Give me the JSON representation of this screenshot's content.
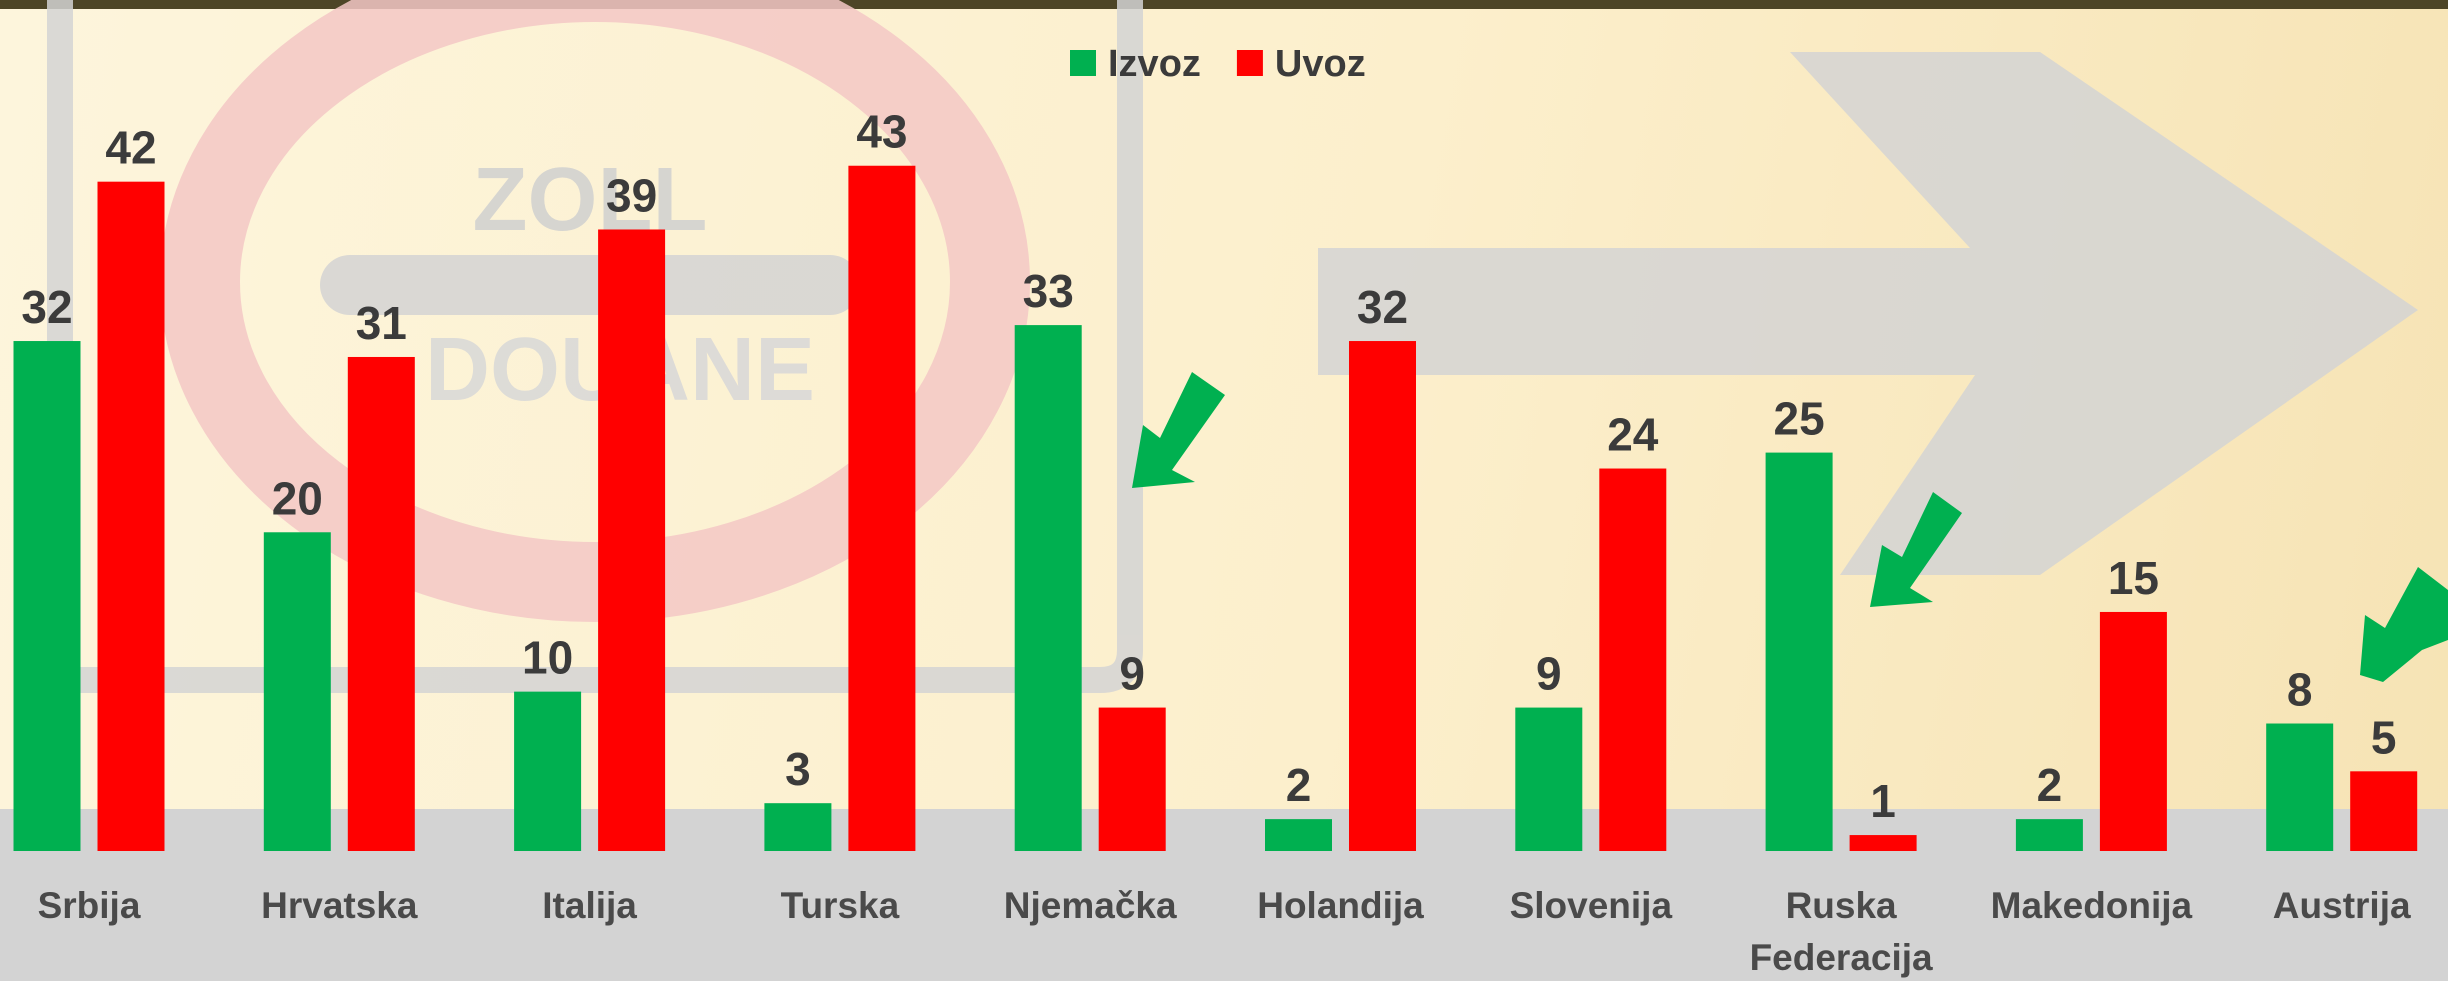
{
  "chart_data": {
    "type": "bar",
    "categories": [
      "Srbija",
      "Hrvatska",
      "Italija",
      "Turska",
      "Njemačka",
      "Holandija",
      "Slovenija",
      "Ruska Federacija",
      "Makedonija",
      "Austrija"
    ],
    "series": [
      {
        "name": "Izvoz",
        "color": "#00b050",
        "values": [
          32,
          20,
          10,
          3,
          33,
          2,
          9,
          25,
          2,
          8
        ]
      },
      {
        "name": "Uvoz",
        "color": "#ff0000",
        "values": [
          42,
          31,
          39,
          43,
          9,
          32,
          24,
          1,
          15,
          5
        ]
      }
    ],
    "ylim": [
      0,
      53.4
    ],
    "legend": "top"
  }
}
